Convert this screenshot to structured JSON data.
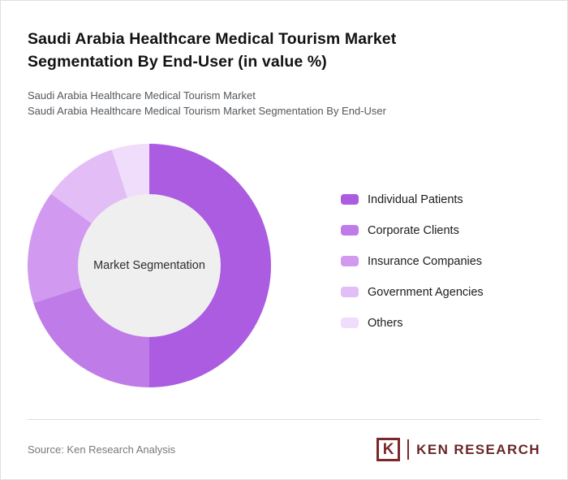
{
  "header": {
    "title": "Saudi Arabia Healthcare Medical Tourism Market\nSegmentation By End-User (in value %)",
    "subtitle1": "Saudi Arabia Healthcare Medical Tourism Market",
    "subtitle2": "Saudi Arabia Healthcare Medical Tourism Market Segmentation By End-User"
  },
  "chart_data": {
    "type": "pie",
    "subtype": "donut",
    "title": "Saudi Arabia Healthcare Medical Tourism Market Segmentation By End-User (in value %)",
    "center_label": "Market Segmentation",
    "legend_position": "right",
    "value_labels_shown": false,
    "segments": [
      {
        "label": "Individual Patients",
        "value": 50,
        "color": "#ab5ce1"
      },
      {
        "label": "Corporate Clients",
        "value": 20,
        "color": "#bf7ce9"
      },
      {
        "label": "Insurance Companies",
        "value": 15,
        "color": "#d19af0"
      },
      {
        "label": "Government Agencies",
        "value": 10,
        "color": "#e2bdf6"
      },
      {
        "label": "Others",
        "value": 5,
        "color": "#f0dcfb"
      }
    ]
  },
  "footer": {
    "source": "Source: Ken Research Analysis",
    "logo_k": "K",
    "logo_text": "KEN RESEARCH"
  },
  "colors": {
    "accent": "#ab5ce1",
    "donut_hole": "#efefef",
    "logo": "#7c272a"
  }
}
